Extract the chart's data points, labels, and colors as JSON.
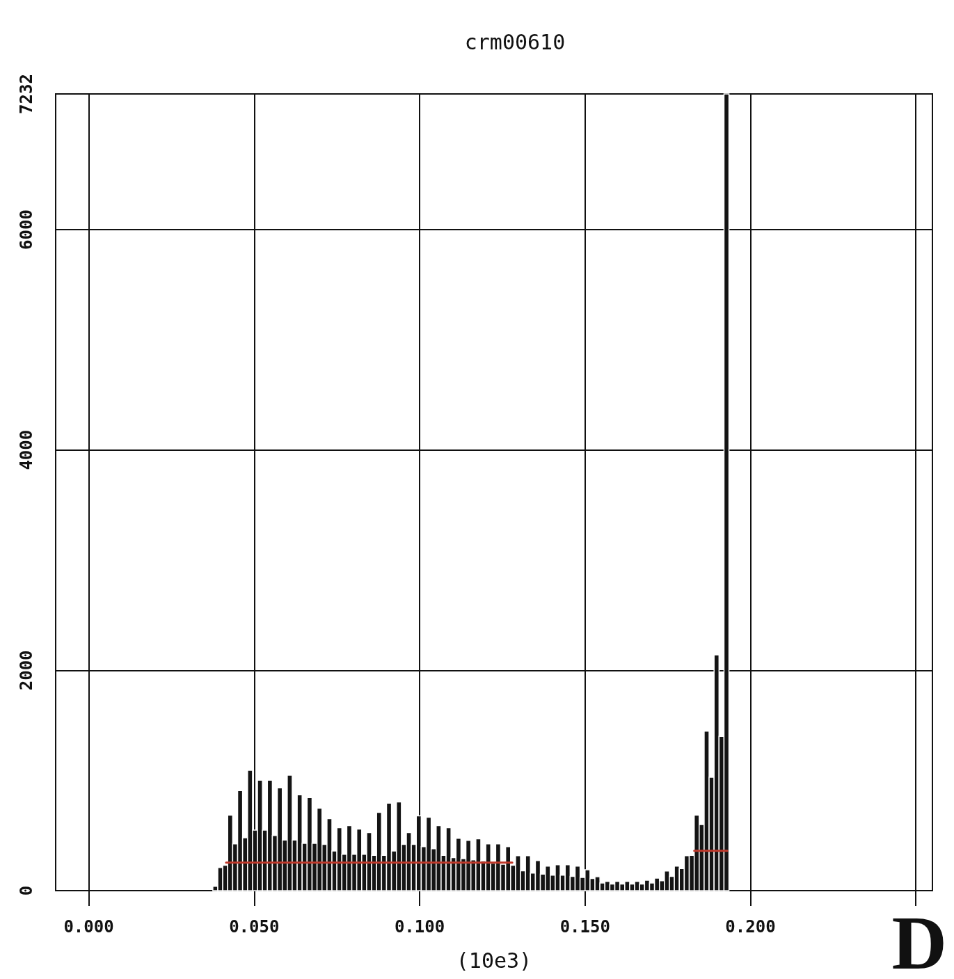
{
  "chart_data": {
    "type": "histogram",
    "title": "crm00610",
    "xlabel": "(10e3)",
    "bins": [
      0.0375,
      0.039,
      0.0405,
      0.042,
      0.0435,
      0.045,
      0.0465,
      0.048,
      0.0495,
      0.051,
      0.0525,
      0.054,
      0.0555,
      0.057,
      0.0585,
      0.06,
      0.0615,
      0.063,
      0.0645,
      0.066,
      0.0675,
      0.069,
      0.0705,
      0.072,
      0.0735,
      0.075,
      0.0765,
      0.078,
      0.0795,
      0.081,
      0.0825,
      0.084,
      0.0855,
      0.087,
      0.0885,
      0.09,
      0.0915,
      0.093,
      0.0945,
      0.096,
      0.0975,
      0.099,
      0.1005,
      0.102,
      0.1035,
      0.105,
      0.1065,
      0.108,
      0.1095,
      0.111,
      0.1125,
      0.114,
      0.1155,
      0.117,
      0.1185,
      0.12,
      0.1215,
      0.123,
      0.1245,
      0.126,
      0.1275,
      0.129,
      0.1305,
      0.132,
      0.1335,
      0.135,
      0.1365,
      0.138,
      0.1395,
      0.141,
      0.1425,
      0.144,
      0.1455,
      0.147,
      0.1485,
      0.15,
      0.1515,
      0.153,
      0.1545,
      0.156,
      0.1575,
      0.159,
      0.1605,
      0.162,
      0.1635,
      0.165,
      0.1665,
      0.168,
      0.1695,
      0.171,
      0.1725,
      0.174,
      0.1755,
      0.177,
      0.1785,
      0.18,
      0.1815,
      0.183,
      0.1845,
      0.186,
      0.1875,
      0.189,
      0.1905,
      0.192,
      0.1935
    ],
    "series": [
      {
        "color": "#141414",
        "values": [
          40,
          210,
          230,
          686,
          425,
          908,
          480,
          1092,
          550,
          1003,
          550,
          1003,
          500,
          933,
          460,
          1048,
          460,
          870,
          430,
          845,
          430,
          749,
          420,
          654,
          360,
          572,
          330,
          591,
          330,
          559,
          330,
          527,
          320,
          711,
          320,
          794,
          360,
          806,
          420,
          527,
          420,
          679,
          400,
          667,
          380,
          591,
          320,
          572,
          300,
          476,
          290,
          457,
          280,
          470,
          270,
          425,
          250,
          425,
          240,
          400,
          230,
          318,
          180,
          318,
          160,
          273,
          150,
          222,
          140,
          235,
          140,
          235,
          130,
          222,
          120,
          190,
          110,
          127,
          70,
          83,
          60,
          83,
          60,
          83,
          60,
          83,
          60,
          95,
          70,
          114,
          90,
          178,
          130,
          222,
          200,
          318,
          320,
          686,
          600,
          1448,
          1030,
          2140,
          1400,
          7232
        ]
      },
      {
        "type": "line",
        "color": "#c0392b",
        "x": [
          0.0415,
          0.128,
          0.13,
          0.183,
          0.193
        ],
        "values": [
          254,
          254,
          null,
          362,
          362
        ]
      }
    ],
    "xlim": [
      -0.01,
      0.255
    ],
    "xticks": [
      {
        "value": 0,
        "label": "0.000"
      },
      {
        "value": 0.05,
        "label": "0.050"
      },
      {
        "value": 0.1,
        "label": "0.100"
      },
      {
        "value": 0.15,
        "label": "0.150"
      },
      {
        "value": 0.2,
        "label": "0.200"
      },
      {
        "value": 0.25,
        "label": null
      }
    ],
    "ylim": [
      0,
      7232
    ],
    "yticks": [
      0,
      2000,
      4000,
      6000,
      7232
    ],
    "grid": true,
    "annotations": [
      "D"
    ]
  }
}
